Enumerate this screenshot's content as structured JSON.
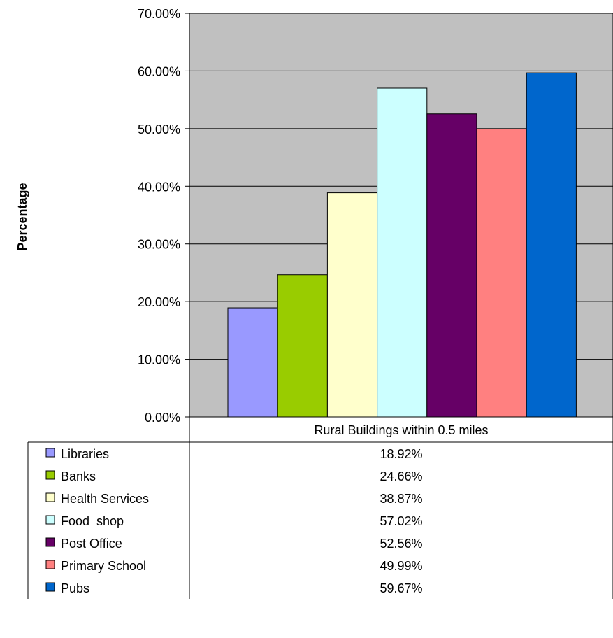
{
  "chart_data": {
    "type": "bar",
    "title": "",
    "xlabel": "",
    "ylabel": "Percentage",
    "ylim": [
      0,
      70
    ],
    "y_ticks": [
      "0.00%",
      "10.00%",
      "20.00%",
      "30.00%",
      "40.00%",
      "50.00%",
      "60.00%",
      "70.00%"
    ],
    "category": "Rural Buildings within 0.5 miles",
    "grid": true,
    "legend": "data-table",
    "plot_background": "#c0c0c0",
    "series": [
      {
        "name": "Libraries",
        "value": 18.92,
        "label": "18.92%",
        "color": "#9999ff"
      },
      {
        "name": "Banks",
        "value": 24.66,
        "label": "24.66%",
        "color": "#99cc00"
      },
      {
        "name": "Health Services",
        "value": 38.87,
        "label": "38.87%",
        "color": "#ffffcc"
      },
      {
        "name": "Food  shop",
        "value": 57.02,
        "label": "57.02%",
        "color": "#ccffff"
      },
      {
        "name": "Post Office",
        "value": 52.56,
        "label": "52.56%",
        "color": "#660066"
      },
      {
        "name": "Primary School",
        "value": 49.99,
        "label": "49.99%",
        "color": "#ff8080"
      },
      {
        "name": "Pubs",
        "value": 59.67,
        "label": "59.67%",
        "color": "#0066cc"
      }
    ]
  }
}
